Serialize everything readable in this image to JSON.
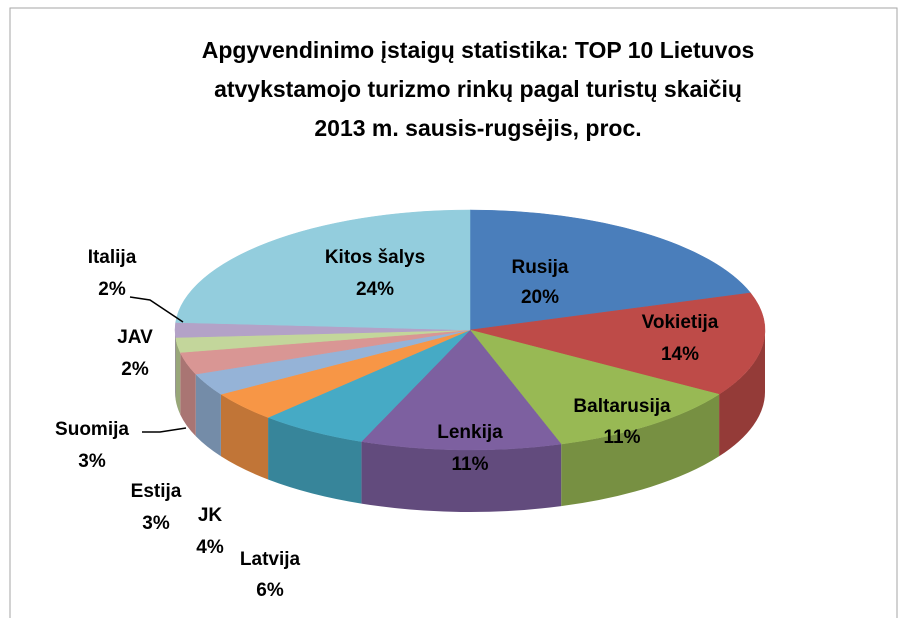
{
  "chart_data": {
    "type": "pie3d",
    "title": [
      "Apgyvendinimo įstaigų statistika: TOP 10 Lietuvos",
      "atvykstamojo turizmo rinkų  pagal turistų skaičių",
      "2013 m. sausis-rugsėjis, proc."
    ],
    "categories": [
      "Rusija",
      "Vokietija",
      "Baltarusija",
      "Lenkija",
      "Latvija",
      "JK",
      "Estija",
      "Suomija",
      "JAV",
      "Italija",
      "Kitos šalys"
    ],
    "values": [
      20,
      14,
      11,
      11,
      6,
      4,
      3,
      3,
      2,
      2,
      24
    ],
    "value_labels": [
      "20%",
      "14%",
      "11%",
      "11%",
      "6%",
      "4%",
      "3%",
      "3%",
      "2%",
      "2%",
      "24%"
    ],
    "colors": [
      "#4a7ebb",
      "#be4b48",
      "#98b954",
      "#7d60a0",
      "#46aac5",
      "#f79646",
      "#95b3d7",
      "#d99694",
      "#c3d69b",
      "#b3a2c7",
      "#93cddd"
    ]
  }
}
